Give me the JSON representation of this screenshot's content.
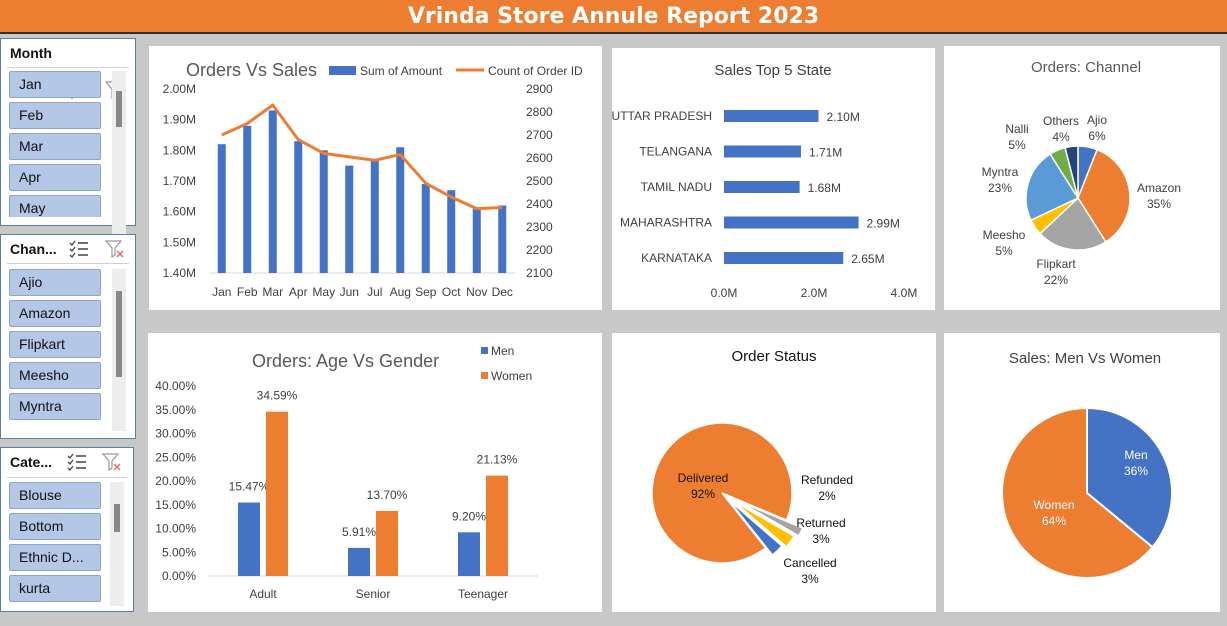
{
  "report_title": "Vrinda Store Annule Report 2023",
  "slicers": {
    "month": {
      "label": "Month",
      "items": [
        "Jan",
        "Feb",
        "Mar",
        "Apr",
        "May"
      ]
    },
    "channel": {
      "label": "Chan...",
      "items": [
        "Ajio",
        "Amazon",
        "Flipkart",
        "Meesho",
        "Myntra"
      ]
    },
    "category": {
      "label": "Cate...",
      "items": [
        "Blouse",
        "Bottom",
        "Ethnic D...",
        "kurta"
      ]
    }
  },
  "colors": {
    "blue": "#4472c4",
    "orange": "#ed7d31",
    "gray": "#a5a5a5",
    "yellow": "#ffc000",
    "lightblue": "#5b9bd5",
    "green": "#70ad47",
    "navy": "#264478"
  },
  "chart_data": [
    {
      "id": "orders_vs_sales",
      "type": "bar",
      "title": "Orders Vs Sales",
      "categories": [
        "Jan",
        "Feb",
        "Mar",
        "Apr",
        "May",
        "Jun",
        "Jul",
        "Aug",
        "Sep",
        "Oct",
        "Nov",
        "Dec"
      ],
      "series": [
        {
          "name": "Sum of Amount",
          "type": "bar",
          "axis": "left",
          "values": [
            1.82,
            1.88,
            1.93,
            1.83,
            1.8,
            1.75,
            1.77,
            1.81,
            1.69,
            1.67,
            1.61,
            1.62
          ]
        },
        {
          "name": "Count of Order ID",
          "type": "line",
          "axis": "right",
          "values": [
            2700,
            2750,
            2830,
            2680,
            2620,
            2605,
            2590,
            2615,
            2490,
            2430,
            2380,
            2385
          ]
        }
      ],
      "y_left": {
        "range": [
          1.4,
          2.0
        ],
        "ticks": [
          "1.40M",
          "1.50M",
          "1.60M",
          "1.70M",
          "1.80M",
          "1.90M",
          "2.00M"
        ]
      },
      "y_right": {
        "range": [
          2100,
          2900
        ],
        "ticks": [
          "2100",
          "2200",
          "2300",
          "2400",
          "2500",
          "2600",
          "2700",
          "2800",
          "2900"
        ]
      },
      "legend": "top"
    },
    {
      "id": "sales_top5_state",
      "type": "bar",
      "orientation": "horizontal",
      "title": "Sales Top 5 State",
      "categories": [
        "UTTAR PRADESH",
        "TELANGANA",
        "TAMIL NADU",
        "MAHARASHTRA",
        "KARNATAKA"
      ],
      "values": [
        2.1,
        1.71,
        1.68,
        2.99,
        2.65
      ],
      "labels": [
        "2.10M",
        "1.71M",
        "1.68M",
        "2.99M",
        "2.65M"
      ],
      "xlim": [
        0,
        4
      ],
      "x_ticks": [
        "0.0M",
        "2.0M",
        "4.0M"
      ]
    },
    {
      "id": "orders_channel",
      "type": "pie",
      "title": "Orders: Channel",
      "slices": [
        {
          "name": "Ajio",
          "value": 6,
          "label": "6%",
          "color": "#4472c4"
        },
        {
          "name": "Amazon",
          "value": 35,
          "label": "35%",
          "color": "#ed7d31"
        },
        {
          "name": "Flipkart",
          "value": 22,
          "label": "22%",
          "color": "#a5a5a5"
        },
        {
          "name": "Meesho",
          "value": 5,
          "label": "5%",
          "color": "#ffc000"
        },
        {
          "name": "Myntra",
          "value": 23,
          "label": "23%",
          "color": "#5b9bd5"
        },
        {
          "name": "Nalli",
          "value": 5,
          "label": "5%",
          "color": "#70ad47"
        },
        {
          "name": "Others",
          "value": 4,
          "label": "4%",
          "color": "#264478"
        }
      ]
    },
    {
      "id": "age_vs_gender",
      "type": "bar",
      "title": "Orders: Age Vs Gender",
      "categories": [
        "Adult",
        "Senior",
        "Teenager"
      ],
      "series": [
        {
          "name": "Men",
          "values": [
            15.47,
            5.91,
            9.2
          ],
          "labels": [
            "15.47%",
            "5.91%",
            "9.20%"
          ],
          "color": "#4472c4"
        },
        {
          "name": "Women",
          "values": [
            34.59,
            13.7,
            21.13
          ],
          "labels": [
            "34.59%",
            "13.70%",
            "21.13%"
          ],
          "color": "#ed7d31"
        }
      ],
      "ylim": [
        0,
        40
      ],
      "y_ticks": [
        "0.00%",
        "5.00%",
        "10.00%",
        "15.00%",
        "20.00%",
        "25.00%",
        "30.00%",
        "35.00%",
        "40.00%"
      ],
      "legend": "top-right"
    },
    {
      "id": "order_status",
      "type": "pie",
      "title": "Order Status",
      "slices": [
        {
          "name": "Delivered",
          "value": 92,
          "pct": "92%",
          "color": "#ed7d31"
        },
        {
          "name": "Refunded",
          "value": 2,
          "pct": "2%",
          "color": "#a5a5a5"
        },
        {
          "name": "Returned",
          "value": 3,
          "pct": "3%",
          "color": "#ffc000"
        },
        {
          "name": "Cancelled",
          "value": 3,
          "pct": "3%",
          "color": "#4472c4"
        }
      ]
    },
    {
      "id": "men_vs_women",
      "type": "pie",
      "title": "Sales: Men Vs Women",
      "slices": [
        {
          "name": "Men",
          "value": 36,
          "pct": "36%",
          "color": "#4472c4"
        },
        {
          "name": "Women",
          "value": 64,
          "pct": "64%",
          "color": "#ed7d31"
        }
      ]
    }
  ]
}
